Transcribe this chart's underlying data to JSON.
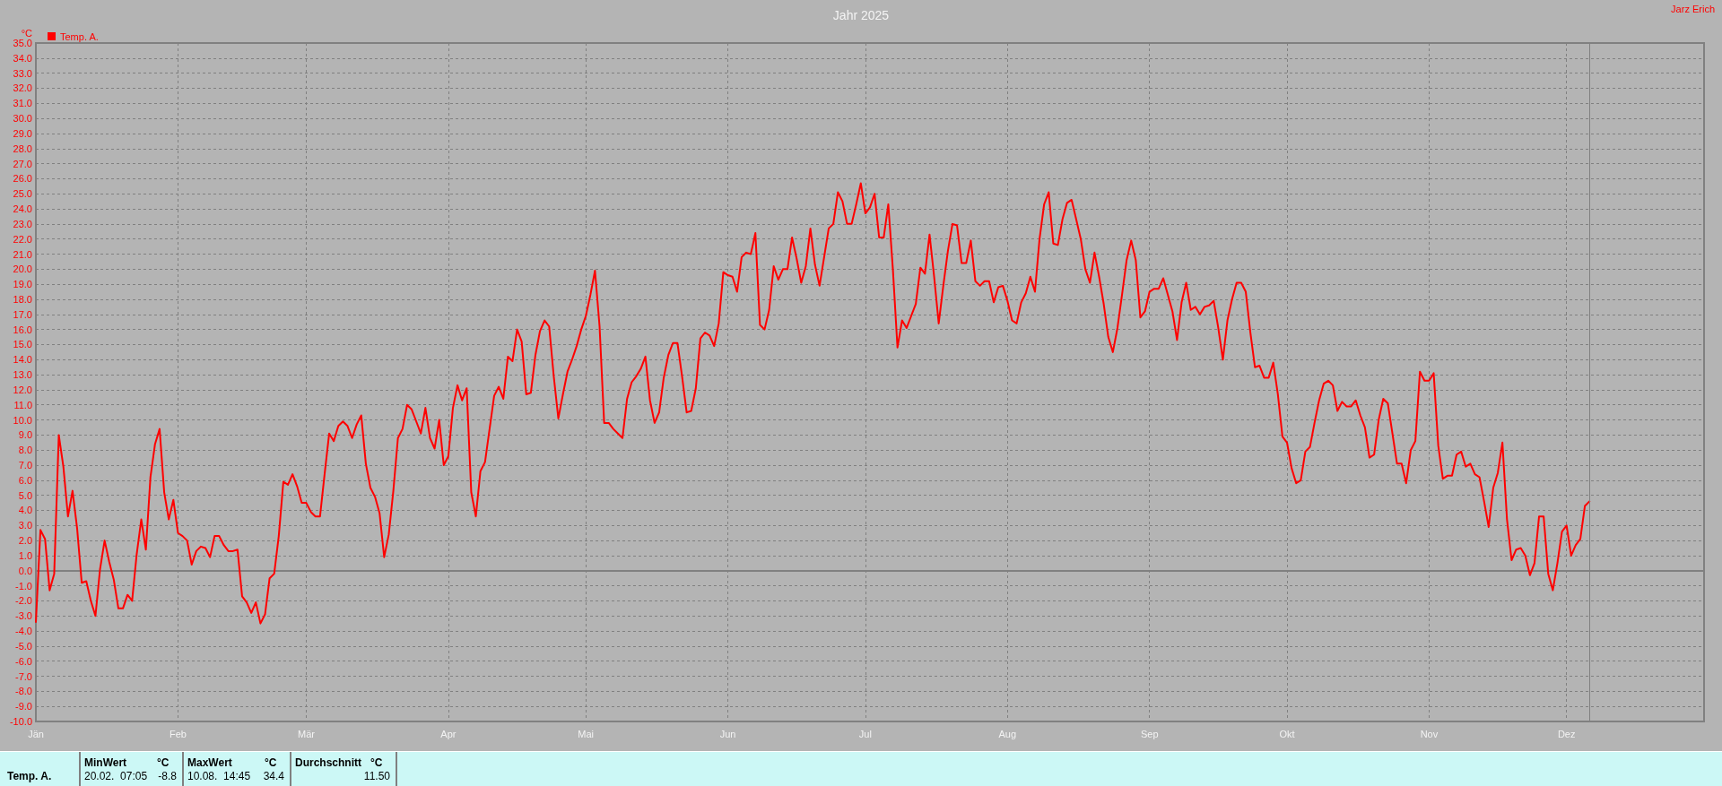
{
  "chart_data": {
    "type": "line",
    "title": "Jahr 2025",
    "ylabel": "°C",
    "legend": "top left",
    "grid": true,
    "xlim": [
      "2025-01-01",
      "2025-12-31"
    ],
    "xticks": [
      {
        "value": "2025-01-01",
        "label": "Jän"
      },
      {
        "value": "2025-02-01",
        "label": "Feb"
      },
      {
        "value": "2025-03-01",
        "label": "Mär"
      },
      {
        "value": "2025-04-01",
        "label": "Apr"
      },
      {
        "value": "2025-05-01",
        "label": "Mai"
      },
      {
        "value": "2025-06-01",
        "label": "Jun"
      },
      {
        "value": "2025-07-01",
        "label": "Jul"
      },
      {
        "value": "2025-08-01",
        "label": "Aug"
      },
      {
        "value": "2025-09-01",
        "label": "Sep"
      },
      {
        "value": "2025-10-01",
        "label": "Okt"
      },
      {
        "value": "2025-11-01",
        "label": "Nov"
      },
      {
        "value": "2025-12-01",
        "label": "Dez"
      }
    ],
    "ylim": [
      -10,
      35
    ],
    "yticks": [
      {
        "value": -10,
        "label": "-10.0"
      },
      {
        "value": -9,
        "label": "-9.0"
      },
      {
        "value": -8,
        "label": "-8.0"
      },
      {
        "value": -7,
        "label": "-7.0"
      },
      {
        "value": -6,
        "label": "-6.0"
      },
      {
        "value": -5,
        "label": "-5.0"
      },
      {
        "value": -4,
        "label": "-4.0"
      },
      {
        "value": -3,
        "label": "-3.0"
      },
      {
        "value": -2,
        "label": "-2.0"
      },
      {
        "value": -1,
        "label": "-1.0"
      },
      {
        "value": 0,
        "label": "0.0"
      },
      {
        "value": 1,
        "label": "1.0"
      },
      {
        "value": 2,
        "label": "2.0"
      },
      {
        "value": 3,
        "label": "3.0"
      },
      {
        "value": 4,
        "label": "4.0"
      },
      {
        "value": 5,
        "label": "5.0"
      },
      {
        "value": 6,
        "label": "6.0"
      },
      {
        "value": 7,
        "label": "7.0"
      },
      {
        "value": 8,
        "label": "8.0"
      },
      {
        "value": 9,
        "label": "9.0"
      },
      {
        "value": 10,
        "label": "10.0"
      },
      {
        "value": 11,
        "label": "11.0"
      },
      {
        "value": 12,
        "label": "12.0"
      },
      {
        "value": 13,
        "label": "13.0"
      },
      {
        "value": 14,
        "label": "14.0"
      },
      {
        "value": 15,
        "label": "15.0"
      },
      {
        "value": 16,
        "label": "16.0"
      },
      {
        "value": 17,
        "label": "17.0"
      },
      {
        "value": 18,
        "label": "18.0"
      },
      {
        "value": 19,
        "label": "19.0"
      },
      {
        "value": 20,
        "label": "20.0"
      },
      {
        "value": 21,
        "label": "21.0"
      },
      {
        "value": 22,
        "label": "22.0"
      },
      {
        "value": 23,
        "label": "23.0"
      },
      {
        "value": 24,
        "label": "24.0"
      },
      {
        "value": 25,
        "label": "25.0"
      },
      {
        "value": 26,
        "label": "26.0"
      },
      {
        "value": 27,
        "label": "27.0"
      },
      {
        "value": 28,
        "label": "28.0"
      },
      {
        "value": 29,
        "label": "29.0"
      },
      {
        "value": 30,
        "label": "30.0"
      },
      {
        "value": 31,
        "label": "31.0"
      },
      {
        "value": 32,
        "label": "32.0"
      },
      {
        "value": 33,
        "label": "33.0"
      },
      {
        "value": 34,
        "label": "34.0"
      },
      {
        "value": 35,
        "label": "35.0"
      }
    ],
    "ref_lines": [
      {
        "axis": "x",
        "value": "2025-12-06",
        "color": "#808080"
      }
    ],
    "annotations": [
      "Jarz Erich",
      "Temp. A.",
      "MinWert",
      "°C",
      "20.02.  07:05",
      "-8.8",
      "MaxWert",
      "°C",
      "10.08.  14:45",
      "34.4",
      "Durchschnitt",
      "°C",
      "11.50"
    ],
    "series": [
      {
        "name": "Temp. A.",
        "color": "#ff0000",
        "x": [
          "2025-01-01",
          "2025-01-02",
          "2025-01-03",
          "2025-01-04",
          "2025-01-05",
          "2025-01-06",
          "2025-01-07",
          "2025-01-08",
          "2025-01-09",
          "2025-01-10",
          "2025-01-11",
          "2025-01-12",
          "2025-01-13",
          "2025-01-14",
          "2025-01-15",
          "2025-01-16",
          "2025-01-17",
          "2025-01-18",
          "2025-01-19",
          "2025-01-20",
          "2025-01-21",
          "2025-01-22",
          "2025-01-23",
          "2025-01-24",
          "2025-01-25",
          "2025-01-26",
          "2025-01-27",
          "2025-01-28",
          "2025-01-29",
          "2025-01-30",
          "2025-01-31",
          "2025-02-01",
          "2025-02-02",
          "2025-02-03",
          "2025-02-04",
          "2025-02-05",
          "2025-02-06",
          "2025-02-07",
          "2025-02-08",
          "2025-02-09",
          "2025-02-10",
          "2025-02-11",
          "2025-02-12",
          "2025-02-13",
          "2025-02-14",
          "2025-02-15",
          "2025-02-16",
          "2025-02-17",
          "2025-02-18",
          "2025-02-19",
          "2025-02-20",
          "2025-02-21",
          "2025-02-22",
          "2025-02-23",
          "2025-02-24",
          "2025-02-25",
          "2025-02-26",
          "2025-02-27",
          "2025-02-28",
          "2025-03-01",
          "2025-03-02",
          "2025-03-03",
          "2025-03-04",
          "2025-03-05",
          "2025-03-06",
          "2025-03-07",
          "2025-03-08",
          "2025-03-09",
          "2025-03-10",
          "2025-03-11",
          "2025-03-12",
          "2025-03-13",
          "2025-03-14",
          "2025-03-15",
          "2025-03-16",
          "2025-03-17",
          "2025-03-18",
          "2025-03-19",
          "2025-03-20",
          "2025-03-21",
          "2025-03-22",
          "2025-03-23",
          "2025-03-24",
          "2025-03-25",
          "2025-03-26",
          "2025-03-27",
          "2025-03-28",
          "2025-03-29",
          "2025-03-30",
          "2025-03-31",
          "2025-04-01",
          "2025-04-02",
          "2025-04-03",
          "2025-04-04",
          "2025-04-05",
          "2025-04-06",
          "2025-04-07",
          "2025-04-08",
          "2025-04-09",
          "2025-04-10",
          "2025-04-11",
          "2025-04-12",
          "2025-04-13",
          "2025-04-14",
          "2025-04-15",
          "2025-04-16",
          "2025-04-17",
          "2025-04-18",
          "2025-04-19",
          "2025-04-20",
          "2025-04-21",
          "2025-04-22",
          "2025-04-23",
          "2025-04-24",
          "2025-04-25",
          "2025-04-26",
          "2025-04-27",
          "2025-04-28",
          "2025-04-29",
          "2025-04-30",
          "2025-05-01",
          "2025-05-02",
          "2025-05-03",
          "2025-05-04",
          "2025-05-05",
          "2025-05-06",
          "2025-05-07",
          "2025-05-08",
          "2025-05-09",
          "2025-05-10",
          "2025-05-11",
          "2025-05-12",
          "2025-05-13",
          "2025-05-14",
          "2025-05-15",
          "2025-05-16",
          "2025-05-17",
          "2025-05-18",
          "2025-05-19",
          "2025-05-20",
          "2025-05-21",
          "2025-05-22",
          "2025-05-23",
          "2025-05-24",
          "2025-05-25",
          "2025-05-26",
          "2025-05-27",
          "2025-05-28",
          "2025-05-29",
          "2025-05-30",
          "2025-05-31",
          "2025-06-01",
          "2025-06-02",
          "2025-06-03",
          "2025-06-04",
          "2025-06-05",
          "2025-06-06",
          "2025-06-07",
          "2025-06-08",
          "2025-06-09",
          "2025-06-10",
          "2025-06-11",
          "2025-06-12",
          "2025-06-13",
          "2025-06-14",
          "2025-06-15",
          "2025-06-16",
          "2025-06-17",
          "2025-06-18",
          "2025-06-19",
          "2025-06-20",
          "2025-06-21",
          "2025-06-22",
          "2025-06-23",
          "2025-06-24",
          "2025-06-25",
          "2025-06-26",
          "2025-06-27",
          "2025-06-28",
          "2025-06-29",
          "2025-06-30",
          "2025-07-01",
          "2025-07-02",
          "2025-07-03",
          "2025-07-04",
          "2025-07-05",
          "2025-07-06",
          "2025-07-07",
          "2025-07-08",
          "2025-07-09",
          "2025-07-10",
          "2025-07-11",
          "2025-07-12",
          "2025-07-13",
          "2025-07-14",
          "2025-07-15",
          "2025-07-16",
          "2025-07-17",
          "2025-07-18",
          "2025-07-19",
          "2025-07-20",
          "2025-07-21",
          "2025-07-22",
          "2025-07-23",
          "2025-07-24",
          "2025-07-25",
          "2025-07-26",
          "2025-07-27",
          "2025-07-28",
          "2025-07-29",
          "2025-07-30",
          "2025-07-31",
          "2025-08-01",
          "2025-08-02",
          "2025-08-03",
          "2025-08-04",
          "2025-08-05",
          "2025-08-06",
          "2025-08-07",
          "2025-08-08",
          "2025-08-09",
          "2025-08-10",
          "2025-08-11",
          "2025-08-12",
          "2025-08-13",
          "2025-08-14",
          "2025-08-15",
          "2025-08-16",
          "2025-08-17",
          "2025-08-18",
          "2025-08-19",
          "2025-08-20",
          "2025-08-21",
          "2025-08-22",
          "2025-08-23",
          "2025-08-24",
          "2025-08-25",
          "2025-08-26",
          "2025-08-27",
          "2025-08-28",
          "2025-08-29",
          "2025-08-30",
          "2025-08-31",
          "2025-09-01",
          "2025-09-02",
          "2025-09-03",
          "2025-09-04",
          "2025-09-05",
          "2025-09-06",
          "2025-09-07",
          "2025-09-08",
          "2025-09-09",
          "2025-09-10",
          "2025-09-11",
          "2025-09-12",
          "2025-09-13",
          "2025-09-14",
          "2025-09-15",
          "2025-09-16",
          "2025-09-17",
          "2025-09-18",
          "2025-09-19",
          "2025-09-20",
          "2025-09-21",
          "2025-09-22",
          "2025-09-23",
          "2025-09-24",
          "2025-09-25",
          "2025-09-26",
          "2025-09-27",
          "2025-09-28",
          "2025-09-29",
          "2025-09-30",
          "2025-10-01",
          "2025-10-02",
          "2025-10-03",
          "2025-10-04",
          "2025-10-05",
          "2025-10-06",
          "2025-10-07",
          "2025-10-08",
          "2025-10-09",
          "2025-10-10",
          "2025-10-11",
          "2025-10-12",
          "2025-10-13",
          "2025-10-14",
          "2025-10-15",
          "2025-10-16",
          "2025-10-17",
          "2025-10-18",
          "2025-10-19",
          "2025-10-20",
          "2025-10-21",
          "2025-10-22",
          "2025-10-23",
          "2025-10-24",
          "2025-10-25",
          "2025-10-26",
          "2025-10-27",
          "2025-10-28",
          "2025-10-29",
          "2025-10-30",
          "2025-10-31",
          "2025-11-01",
          "2025-11-02",
          "2025-11-03",
          "2025-11-04",
          "2025-11-05",
          "2025-11-06",
          "2025-11-07",
          "2025-11-08",
          "2025-11-09",
          "2025-11-10",
          "2025-11-11",
          "2025-11-12",
          "2025-11-13",
          "2025-11-14",
          "2025-11-15",
          "2025-11-16",
          "2025-11-17",
          "2025-11-18",
          "2025-11-19",
          "2025-11-20",
          "2025-11-21",
          "2025-11-22",
          "2025-11-23",
          "2025-11-24",
          "2025-11-25",
          "2025-11-26",
          "2025-11-27",
          "2025-11-28",
          "2025-11-29",
          "2025-11-30",
          "2025-12-01",
          "2025-12-02",
          "2025-12-03",
          "2025-12-04",
          "2025-12-05",
          "2025-12-06"
        ],
        "values": [
          -3.4,
          2.7,
          2.1,
          -1.3,
          -0.2,
          9.0,
          6.9,
          3.6,
          5.3,
          2.8,
          -0.8,
          -0.7,
          -2.0,
          -3.0,
          0.1,
          2.0,
          0.6,
          -0.6,
          -2.5,
          -2.5,
          -1.6,
          -2.0,
          1.1,
          3.4,
          1.4,
          6.2,
          8.4,
          9.4,
          5.2,
          3.4,
          4.7,
          2.5,
          2.3,
          2.0,
          0.4,
          1.3,
          1.6,
          1.5,
          0.9,
          2.3,
          2.3,
          1.7,
          1.3,
          1.3,
          1.4,
          -1.7,
          -2.1,
          -2.8,
          -2.1,
          -3.5,
          -2.9,
          -0.5,
          -0.2,
          2.3,
          5.9,
          5.7,
          6.4,
          5.6,
          4.5,
          4.5,
          3.9,
          3.6,
          3.6,
          6.4,
          9.1,
          8.6,
          9.6,
          9.9,
          9.6,
          8.8,
          9.7,
          10.3,
          7.1,
          5.5,
          4.9,
          3.8,
          0.9,
          2.4,
          5.3,
          8.8,
          9.4,
          11.0,
          10.7,
          9.9,
          9.1,
          10.8,
          8.8,
          8.1,
          10.0,
          7.0,
          7.6,
          10.8,
          12.3,
          11.3,
          12.1,
          5.2,
          3.6,
          6.6,
          7.2,
          9.4,
          11.6,
          12.2,
          11.4,
          14.2,
          13.9,
          16.0,
          15.2,
          11.7,
          11.8,
          14.3,
          15.9,
          16.6,
          16.2,
          12.9,
          10.1,
          11.7,
          13.2,
          14.0,
          14.9,
          16.0,
          16.9,
          18.3,
          19.9,
          16.2,
          9.8,
          9.8,
          9.4,
          9.1,
          8.8,
          11.4,
          12.5,
          12.9,
          13.4,
          14.2,
          11.3,
          9.8,
          10.5,
          12.8,
          14.3,
          15.1,
          15.1,
          12.9,
          10.5,
          10.6,
          12.1,
          15.4,
          15.8,
          15.6,
          14.9,
          16.4,
          19.8,
          19.6,
          19.5,
          18.5,
          20.8,
          21.1,
          21.0,
          22.4,
          16.3,
          16.0,
          17.3,
          20.2,
          19.3,
          20.0,
          20.0,
          22.1,
          20.7,
          19.1,
          20.2,
          22.7,
          20.3,
          18.9,
          20.8,
          22.7,
          23.0,
          25.1,
          24.5,
          23.0,
          23.0,
          24.3,
          25.7,
          23.7,
          24.1,
          25.0,
          22.1,
          22.1,
          24.3,
          20.0,
          14.8,
          16.6,
          16.1,
          16.9,
          17.7,
          20.1,
          19.7,
          22.3,
          19.5,
          16.4,
          18.9,
          21.2,
          23.0,
          22.9,
          20.4,
          20.4,
          21.9,
          19.2,
          18.9,
          19.2,
          19.2,
          17.8,
          18.8,
          18.9,
          17.9,
          16.6,
          16.4,
          17.8,
          18.4,
          19.5,
          18.5,
          22.0,
          24.3,
          25.1,
          21.7,
          21.6,
          23.3,
          24.4,
          24.6,
          23.3,
          22.0,
          20.0,
          19.1,
          21.1,
          19.5,
          17.7,
          15.5,
          14.5,
          16.1,
          18.3,
          20.6,
          21.9,
          20.6,
          16.8,
          17.2,
          18.5,
          18.7,
          18.7,
          19.4,
          18.3,
          17.2,
          15.3,
          17.8,
          19.1,
          17.3,
          17.5,
          17.0,
          17.5,
          17.6,
          17.9,
          16.1,
          14.0,
          16.6,
          18.0,
          19.1,
          19.1,
          18.5,
          15.8,
          13.5,
          13.6,
          12.8,
          12.8,
          13.8,
          11.7,
          8.9,
          8.5,
          6.8,
          5.8,
          6.0,
          7.9,
          8.2,
          9.8,
          11.3,
          12.4,
          12.6,
          12.3,
          10.6,
          11.2,
          10.9,
          10.9,
          11.3,
          10.3,
          9.5,
          7.5,
          7.7,
          10.0,
          11.4,
          11.1,
          9.1,
          7.1,
          7.1,
          5.8,
          8.0,
          8.6,
          13.2,
          12.6,
          12.6,
          13.1,
          8.3,
          6.1,
          6.3,
          6.3,
          7.7,
          7.9,
          6.9,
          7.1,
          6.4,
          6.2,
          4.6,
          2.9,
          5.5,
          6.5,
          8.5,
          3.4,
          0.7,
          1.4,
          1.5,
          1.0,
          -0.3,
          0.5,
          3.6,
          3.6,
          -0.2,
          -1.3,
          0.5,
          2.6,
          3.0,
          1.0,
          1.7,
          2.1,
          4.3,
          4.6
        ]
      }
    ]
  }
}
